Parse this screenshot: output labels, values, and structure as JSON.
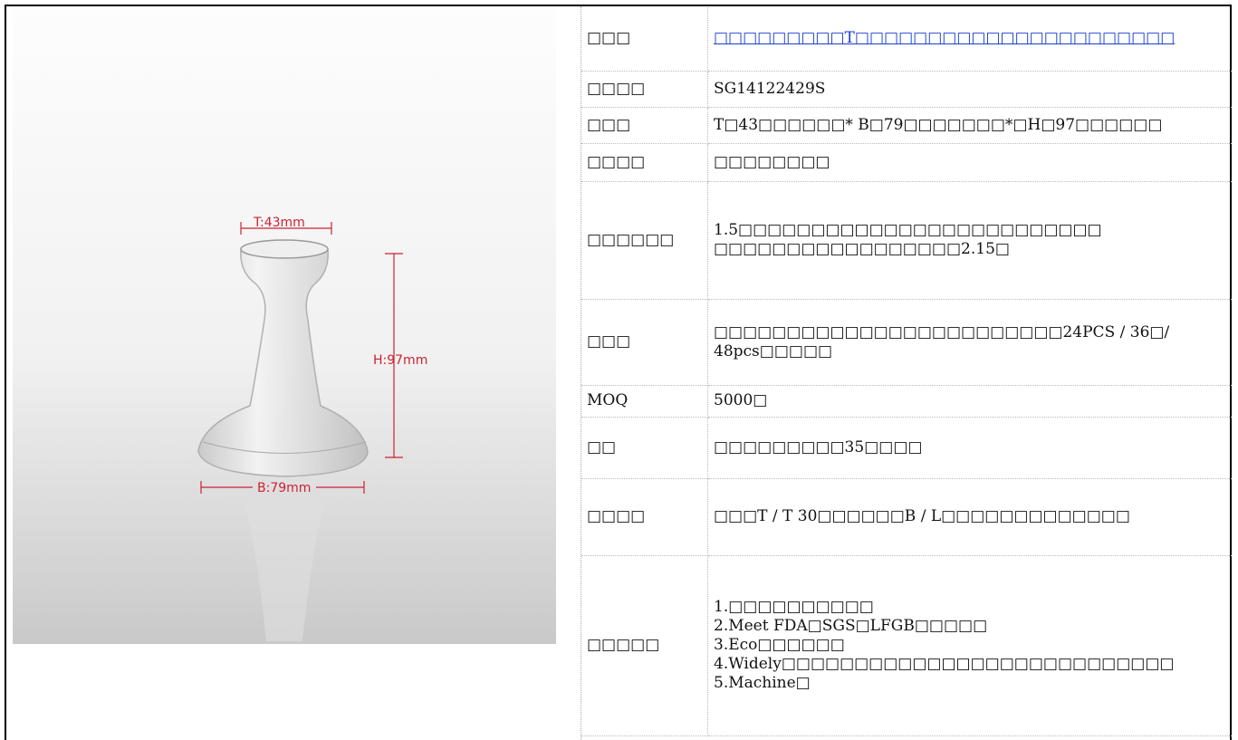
{
  "image": {
    "annotations": {
      "top": "T:43mm",
      "height": "H:97mm",
      "base": "B:79mm"
    }
  },
  "table": {
    "rows": [
      [
        "□□□",
        "□□□□□□□□□T□□□□□□□□□□□□□□□□□□□□□□"
      ],
      [
        "□□□□",
        "SG14122429S"
      ],
      [
        "□□□",
        "T□43□□□□□□* B□79□□□□□□□*□H□97□□□□□□"
      ],
      [
        "□□□□",
        "□□□□□□□□"
      ],
      [
        "□□□□□□",
        [
          "1.5□□□□□□□□□□□□□□□□□□□□□□□□□",
          "□□□□□□□□□□□□□□□□□2.15□"
        ]
      ],
      [
        "□□□",
        "□□□□□□□□□□□□□□□□□□□□□□□□24PCS / 36□/ 48pcs□□□□□"
      ],
      [
        "MOQ",
        "5000□"
      ],
      [
        "□□",
        "□□□□□□□□□35□□□□"
      ],
      [
        "□□□□",
        "□□□T / T 30□□□□□□B / L□□□□□□□□□□□□□"
      ],
      [
        "□□□□□",
        [
          "1.□□□□□□□□□□",
          "2.Meet FDA□SGS□LFGB□□□□□",
          "3.Eco□□□□□□",
          "4.Widely□□□□□□□□□□□□□□□□□□□□□□□□□□□",
          "5.Machine□"
        ]
      ]
    ]
  }
}
